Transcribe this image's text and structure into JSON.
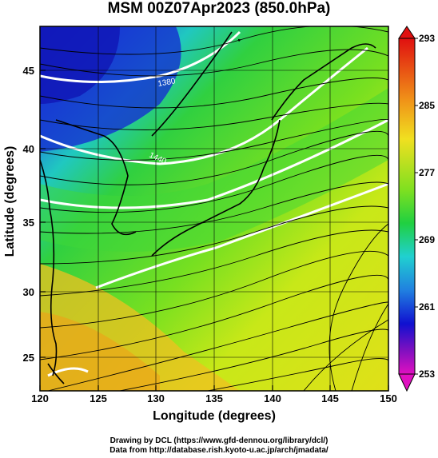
{
  "title": "MSM 00Z07Apr2023 (850.0hPa)",
  "x_axis": {
    "label": "Longitude (degrees)",
    "ticks": [
      "120",
      "125",
      "130",
      "135",
      "140",
      "145",
      "150"
    ],
    "range": [
      120,
      150
    ]
  },
  "y_axis": {
    "label": "Latitude  (degrees)",
    "ticks": [
      "25",
      "30",
      "35",
      "40",
      "45"
    ],
    "range": [
      23,
      48
    ]
  },
  "colorbar": {
    "labels": [
      "293",
      "285",
      "277",
      "269",
      "261",
      "253"
    ],
    "range": [
      253,
      293
    ]
  },
  "contour_labels": [
    "1380",
    "1440"
  ],
  "credits": {
    "line1": "Drawing by DCL (https://www.gfd-dennou.org/library/dcl/)",
    "line2": "Data from http://database.rish.kyoto-u.ac.jp/arch/jmadata/"
  }
}
